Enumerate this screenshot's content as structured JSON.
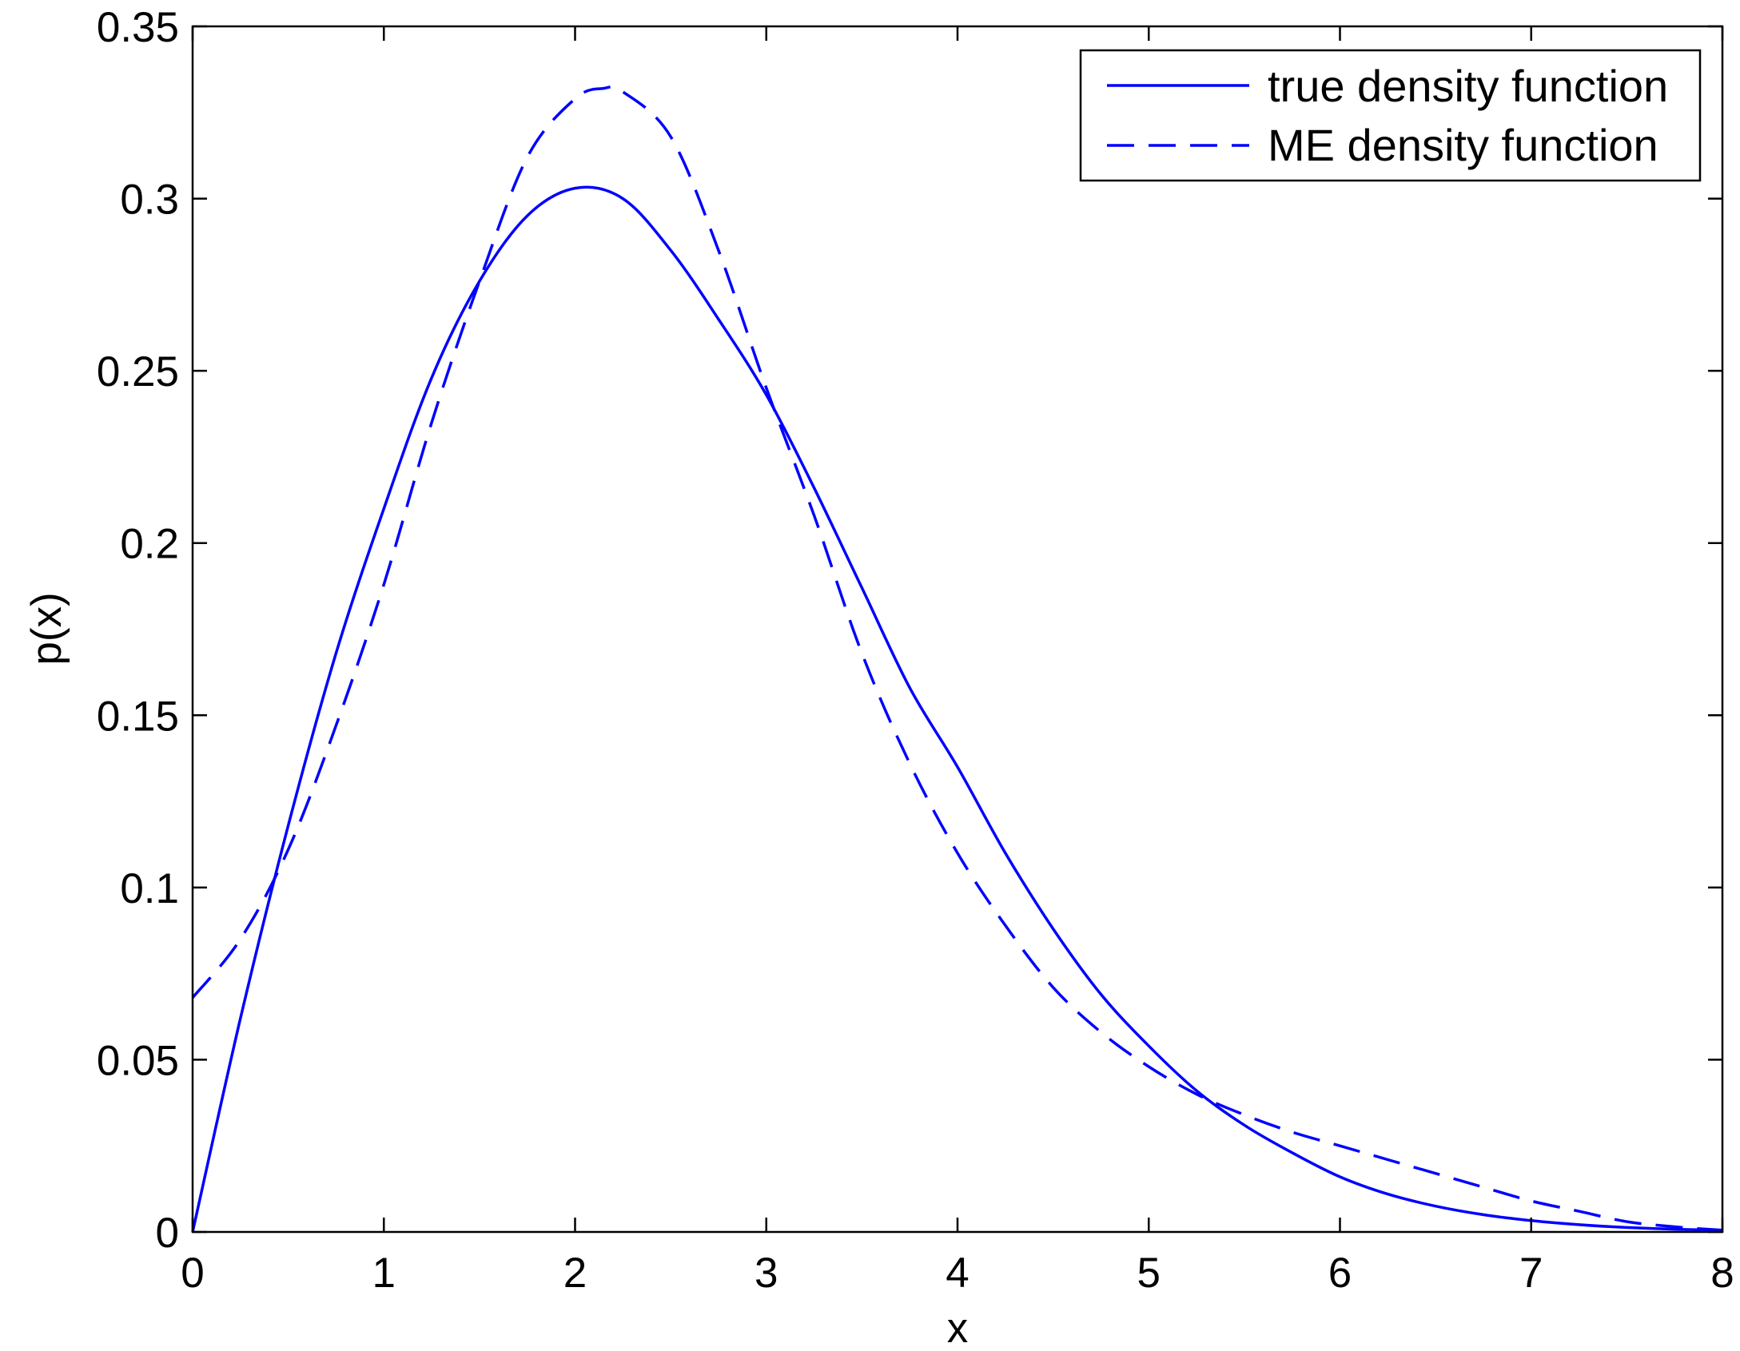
{
  "chart_data": {
    "type": "line",
    "xlabel": "x",
    "ylabel": "p(x)",
    "xlim": [
      0,
      8
    ],
    "ylim": [
      0,
      0.35
    ],
    "xticks": [
      "0",
      "1",
      "2",
      "3",
      "4",
      "5",
      "6",
      "7",
      "8"
    ],
    "yticks": [
      "0",
      "0.05",
      "0.1",
      "0.15",
      "0.2",
      "0.25",
      "0.3",
      "0.35"
    ],
    "grid": false,
    "legend_position": "top-right",
    "series": [
      {
        "name": "true density function",
        "style": "solid",
        "color": "#0000ff",
        "x": [
          0,
          0.25,
          0.5,
          0.75,
          1,
          1.25,
          1.5,
          1.75,
          2,
          2.25,
          2.5,
          2.75,
          3,
          3.25,
          3.5,
          3.75,
          4,
          4.25,
          4.5,
          4.75,
          5,
          5.25,
          5.5,
          5.75,
          6,
          6.25,
          6.5,
          6.75,
          7,
          7.25,
          7.5,
          7.75,
          8
        ],
        "y": [
          0,
          0.062,
          0.118,
          0.168,
          0.21,
          0.248,
          0.276,
          0.295,
          0.303,
          0.3,
          0.285,
          0.265,
          0.243,
          0.216,
          0.187,
          0.158,
          0.135,
          0.11,
          0.088,
          0.069,
          0.054,
          0.041,
          0.031,
          0.023,
          0.016,
          0.011,
          0.0075,
          0.005,
          0.0033,
          0.0021,
          0.0013,
          0.0008,
          0.0005
        ]
      },
      {
        "name": "ME density function",
        "style": "dashed",
        "color": "#0000ff",
        "x": [
          0,
          0.25,
          0.5,
          0.75,
          1,
          1.25,
          1.5,
          1.75,
          2,
          2.15,
          2.25,
          2.5,
          2.75,
          3,
          3.25,
          3.5,
          3.75,
          4,
          4.25,
          4.5,
          4.75,
          5,
          5.25,
          5.5,
          5.75,
          6,
          6.25,
          6.5,
          6.75,
          7,
          7.25,
          7.5,
          7.75,
          8
        ],
        "y": [
          0.068,
          0.085,
          0.111,
          0.147,
          0.188,
          0.235,
          0.276,
          0.312,
          0.329,
          0.332,
          0.331,
          0.318,
          0.285,
          0.245,
          0.208,
          0.168,
          0.136,
          0.11,
          0.089,
          0.071,
          0.058,
          0.048,
          0.04,
          0.034,
          0.029,
          0.025,
          0.021,
          0.017,
          0.013,
          0.009,
          0.006,
          0.003,
          0.0015,
          0.0005
        ]
      }
    ]
  }
}
